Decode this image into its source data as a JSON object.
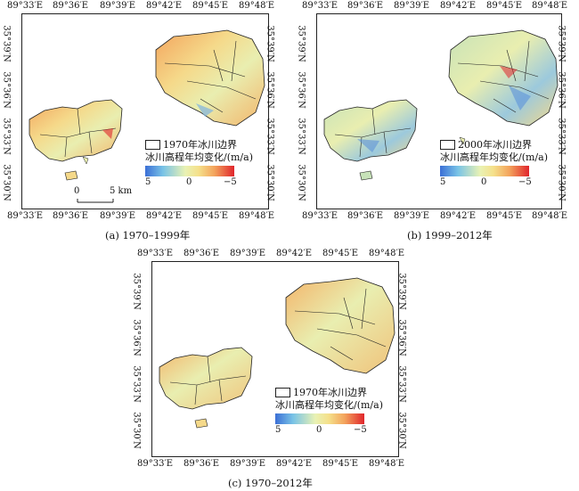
{
  "panels": {
    "a": {
      "caption": "(a) 1970–1999年",
      "lon_top": [
        "89°33′E",
        "89°36′E",
        "89°39′E",
        "89°42′E",
        "89°45′E",
        "89°48′E"
      ],
      "lon_bottom": [
        "89°33′E",
        "89°36′E",
        "89°39′E",
        "89°42′E",
        "89°45′E",
        "89°48′E"
      ],
      "lat_left": [
        "35°39′N",
        "35°36′N",
        "35°33′N",
        "35°30′N"
      ],
      "lat_right": [
        "35°39′N",
        "35°36′N",
        "35°33′N",
        "35°30′N"
      ],
      "legend_boundary": "1970年冰川边界",
      "legend_title": "冰川高程年均变化/(m/a)",
      "ramp_ticks": [
        "5",
        "0",
        "−5"
      ],
      "scale_zero": "0",
      "scale_label": "5 km"
    },
    "b": {
      "caption": "(b) 1999–2012年",
      "lon_top": [
        "89°33′E",
        "89°36′E",
        "89°39′E",
        "89°42′E",
        "89°45′E",
        "89°48′E"
      ],
      "lon_bottom": [
        "89°33′E",
        "89°36′E",
        "89°39′E",
        "89°42′E",
        "89°45′E",
        "89°48′E"
      ],
      "lat_left": [
        "35°39′N",
        "35°36′N",
        "35°33′N",
        "35°30′N"
      ],
      "lat_right": [
        "35°39′N",
        "35°36′N",
        "35°33′N",
        "35°30′N"
      ],
      "legend_boundary": "2000年冰川边界",
      "legend_title": "冰川高程年均变化/(m/a)",
      "ramp_ticks": [
        "5",
        "0",
        "−5"
      ]
    },
    "c": {
      "caption": "(c) 1970–2012年",
      "lon_top": [
        "89°33′E",
        "89°36′E",
        "89°39′E",
        "89°42′E",
        "89°45′E",
        "89°48′E"
      ],
      "lon_bottom": [
        "89°33′E",
        "89°36′E",
        "89°39′E",
        "89°42′E",
        "89°45′E",
        "89°48′E"
      ],
      "lat_left": [
        "35°39′N",
        "35°36′N",
        "35°33′N",
        "35°30′N"
      ],
      "lat_right": [
        "35°39′N",
        "35°36′N",
        "35°33′N",
        "35°30′N"
      ],
      "legend_boundary": "1970年冰川边界",
      "legend_title": "冰川高程年均变化/(m/a)",
      "ramp_ticks": [
        "5",
        "0",
        "−5"
      ]
    }
  },
  "colors": {
    "ramp_low": "#3b6fd6",
    "ramp_mid": "#e9f2b4",
    "ramp_high": "#e0252c"
  }
}
